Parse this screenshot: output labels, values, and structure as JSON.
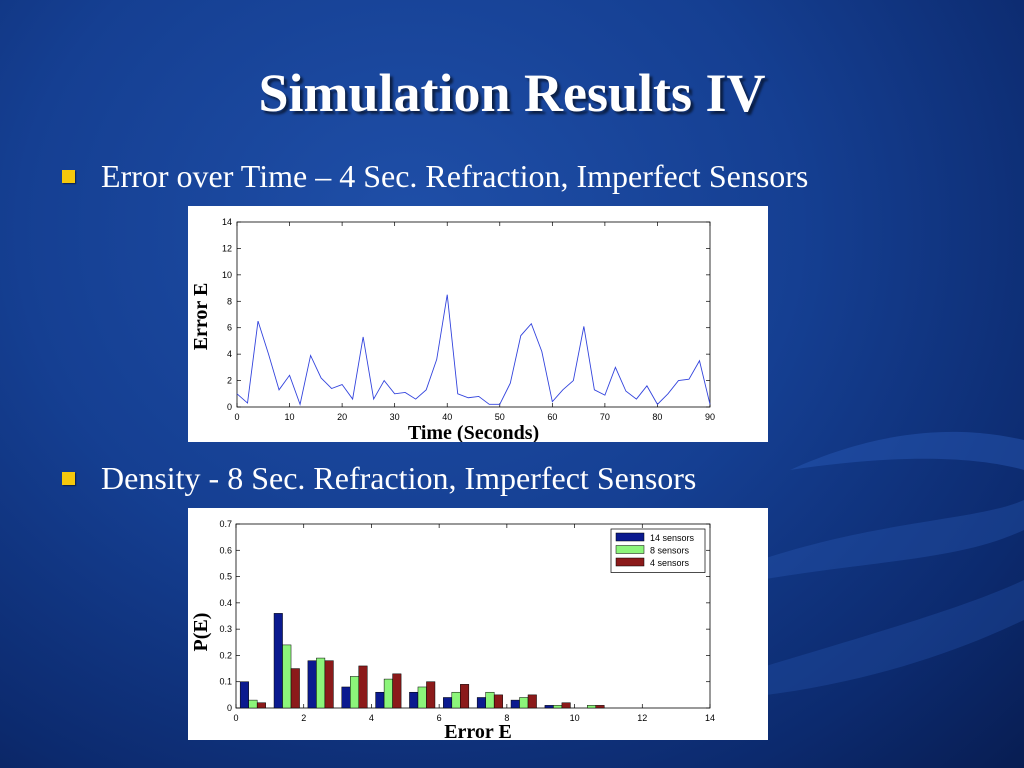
{
  "slide": {
    "title": "Simulation Results IV",
    "bullets": [
      "Error over Time – 4 Sec. Refraction, Imperfect Sensors",
      "Density - 8 Sec. Refraction, Imperfect Sensors"
    ],
    "colors": {
      "bullet": "#f5c80c",
      "text": "#ffffff",
      "background": "#153f92"
    }
  },
  "chart_data": [
    {
      "type": "line",
      "xlabel": "Time (Seconds)",
      "ylabel": "Error E",
      "xlim": [
        0,
        90
      ],
      "ylim": [
        0,
        14
      ],
      "xticks": [
        0,
        10,
        20,
        30,
        40,
        50,
        60,
        70,
        80,
        90
      ],
      "yticks": [
        0,
        2,
        4,
        6,
        8,
        10,
        12,
        14
      ],
      "grid": false,
      "series": [
        {
          "color": "#3344dd",
          "x": [
            0,
            2,
            4,
            6,
            8,
            10,
            12,
            14,
            16,
            18,
            20,
            22,
            24,
            26,
            28,
            30,
            32,
            34,
            36,
            38,
            40,
            42,
            44,
            46,
            48,
            50,
            52,
            54,
            56,
            58,
            60,
            62,
            64,
            66,
            68,
            70,
            72,
            74,
            76,
            78,
            80,
            82,
            84,
            86,
            88,
            90
          ],
          "y": [
            1.0,
            0.3,
            6.5,
            4.0,
            1.3,
            2.4,
            0.2,
            3.9,
            2.2,
            1.4,
            1.7,
            0.6,
            5.3,
            0.6,
            2.0,
            1.0,
            1.1,
            0.6,
            1.3,
            3.6,
            8.5,
            1.0,
            0.7,
            0.8,
            0.2,
            0.2,
            1.8,
            5.4,
            6.3,
            4.2,
            0.4,
            1.3,
            2.0,
            6.1,
            1.3,
            0.9,
            3.0,
            1.2,
            0.6,
            1.6,
            0.2,
            1.0,
            2.0,
            2.1,
            3.5,
            0.2
          ]
        }
      ]
    },
    {
      "type": "bar",
      "xlabel": "Error E",
      "ylabel": "P(E)",
      "xlim": [
        0,
        14
      ],
      "ylim": [
        0,
        0.7
      ],
      "xticks": [
        0,
        2,
        4,
        6,
        8,
        10,
        12,
        14
      ],
      "yticks": [
        0,
        0.1,
        0.2,
        0.3,
        0.4,
        0.5,
        0.6,
        0.7
      ],
      "grid": false,
      "legend_position": "top-right",
      "x": [
        0.5,
        1.5,
        2.5,
        3.5,
        4.5,
        5.5,
        6.5,
        7.5,
        8.5,
        9.5,
        10.5
      ],
      "series": [
        {
          "name": "14 sensors",
          "color": "#0b1a8f",
          "values": [
            0.1,
            0.36,
            0.18,
            0.08,
            0.06,
            0.06,
            0.04,
            0.04,
            0.03,
            0.01,
            0.0
          ]
        },
        {
          "name": "8 sensors",
          "color": "#8cf57a",
          "values": [
            0.03,
            0.24,
            0.19,
            0.12,
            0.11,
            0.08,
            0.06,
            0.06,
            0.04,
            0.01,
            0.01
          ]
        },
        {
          "name": "4 sensors",
          "color": "#8b1a1a",
          "values": [
            0.02,
            0.15,
            0.18,
            0.16,
            0.13,
            0.1,
            0.09,
            0.05,
            0.05,
            0.02,
            0.01
          ]
        }
      ]
    }
  ]
}
